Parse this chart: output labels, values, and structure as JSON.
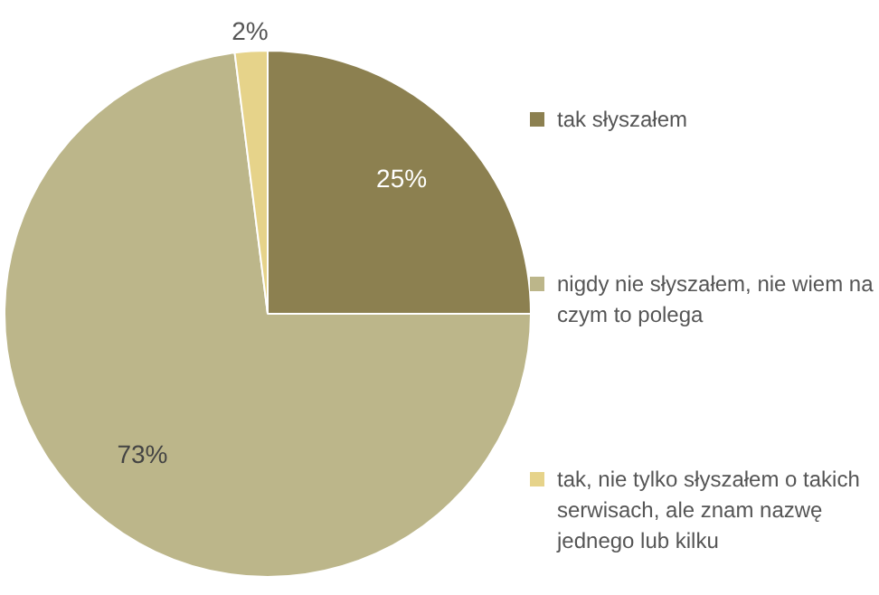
{
  "chart_data": {
    "type": "pie",
    "categories": [
      "tak słyszałem",
      "nigdy nie słyszałem,  nie wiem na czym to polega",
      "tak, nie tylko słyszałem o takich serwisach, ale znam nazwę jednego lub kilku"
    ],
    "values": [
      25,
      73,
      2
    ],
    "colors": [
      "#8c8050",
      "#bcb68a",
      "#e6d38a"
    ],
    "value_labels": [
      "25%",
      "73%",
      "2%"
    ],
    "legend": "right"
  }
}
